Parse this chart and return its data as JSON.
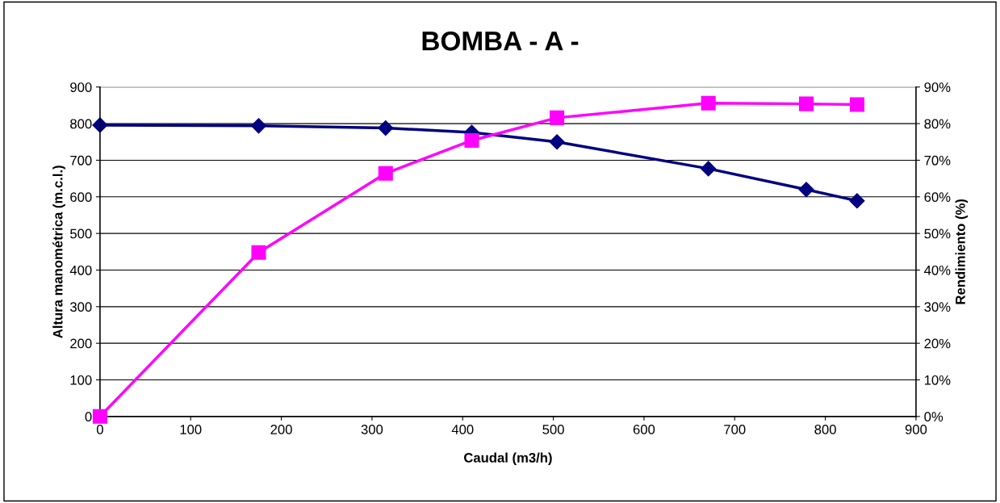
{
  "chart_data": {
    "type": "line",
    "title": "BOMBA - A -",
    "xlabel": "Caudal (m3/h)",
    "ylabel": "Altura manométrica (m.c.l.)",
    "y2label": "Rendimiento (%)",
    "xlim": [
      0,
      900
    ],
    "xticks": [
      0,
      100,
      200,
      300,
      400,
      500,
      600,
      700,
      800,
      900
    ],
    "ylim": [
      0,
      900
    ],
    "yticks": [
      0,
      100,
      200,
      300,
      400,
      500,
      600,
      700,
      800,
      900
    ],
    "y2lim": [
      0,
      90
    ],
    "y2ticks": [
      {
        "value": 0,
        "label": "0%"
      },
      {
        "value": 10,
        "label": "10%"
      },
      {
        "value": 20,
        "label": "20%"
      },
      {
        "value": 30,
        "label": "30%"
      },
      {
        "value": 40,
        "label": "40%"
      },
      {
        "value": 50,
        "label": "50%"
      },
      {
        "value": 60,
        "label": "60%"
      },
      {
        "value": 70,
        "label": "70%"
      },
      {
        "value": 80,
        "label": "80%"
      },
      {
        "value": 90,
        "label": "90%"
      }
    ],
    "grid": "y",
    "series": [
      {
        "color": "#000080",
        "marker": "diamond",
        "x": [
          0,
          175,
          315,
          410,
          504,
          671,
          779,
          835
        ],
        "values": [
          796,
          794,
          788,
          776,
          750,
          677,
          620,
          589
        ]
      },
      {
        "color": "#ff00ff",
        "marker": "square",
        "axis": "y2",
        "x": [
          0,
          175,
          315,
          410,
          504,
          671,
          779,
          835
        ],
        "values": [
          0,
          44.8,
          66.4,
          75.4,
          81.6,
          85.6,
          85.4,
          85.2
        ]
      }
    ]
  }
}
